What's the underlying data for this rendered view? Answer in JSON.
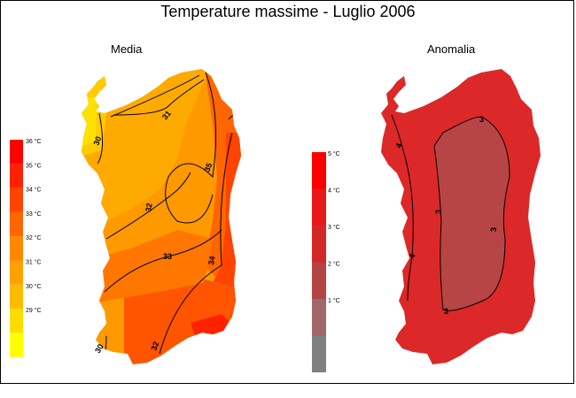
{
  "title": "Temperature massime - Luglio 2006",
  "left_panel": {
    "subtitle": "Media",
    "legend": [
      {
        "label": "36 °C",
        "color": "#ff0000"
      },
      {
        "label": "35 °C",
        "color": "#ff2200"
      },
      {
        "label": "34 °C",
        "color": "#ff4400"
      },
      {
        "label": "33 °C",
        "color": "#ff6600"
      },
      {
        "label": "32 °C",
        "color": "#ff8800"
      },
      {
        "label": "31 °C",
        "color": "#ffa200"
      },
      {
        "label": "30 °C",
        "color": "#ffbb00"
      },
      {
        "label": "29 °C",
        "color": "#ffdd00"
      },
      {
        "label": "",
        "color": "#ffff00"
      }
    ],
    "contours": [
      "30",
      "31",
      "32",
      "33",
      "34",
      "35",
      "30",
      "32"
    ]
  },
  "right_panel": {
    "subtitle": "Anomalia",
    "legend": [
      {
        "label": "5 °C",
        "color": "#ff0000"
      },
      {
        "label": "4 °C",
        "color": "#e81818"
      },
      {
        "label": "3 °C",
        "color": "#d22828"
      },
      {
        "label": "2 °C",
        "color": "#b44444"
      },
      {
        "label": "1 °C",
        "color": "#a06868"
      },
      {
        "label": "",
        "color": "#808080"
      }
    ],
    "contours": [
      "3",
      "3",
      "3",
      "3",
      "4",
      "4"
    ]
  }
}
